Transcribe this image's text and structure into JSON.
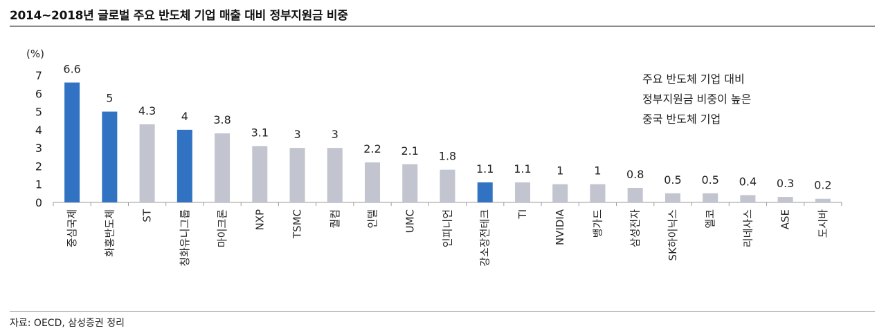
{
  "title": "2014~2018년 글로벌 주요 반도체 기업 매출 대비 정부지원금 비중",
  "source": "자료: OECD, 삼성증권 정리",
  "annotation": [
    "주요 반도체 기업 대비",
    "정부지원금 비중이 높은",
    "중국 반도체 기업"
  ],
  "colors": {
    "highlight": "#3173c2",
    "default": "#c2c4cf"
  },
  "chart_data": {
    "type": "bar",
    "ylabel": "(%)",
    "ylim": [
      0,
      7
    ],
    "yticks": [
      0,
      1,
      2,
      3,
      4,
      5,
      6,
      7
    ],
    "categories": [
      "중심국제",
      "화홍반도체",
      "ST",
      "칭화유니그룹",
      "마이크론",
      "NXP",
      "TSMC",
      "퀄컴",
      "인텔",
      "UMC",
      "인피니언",
      "강소장전테크",
      "TI",
      "NVIDIA",
      "뱅가드",
      "삼성전자",
      "SK하이닉스",
      "엘코",
      "리네사스",
      "ASE",
      "도시바"
    ],
    "values": [
      6.6,
      5,
      4.3,
      4,
      3.8,
      3.1,
      3,
      3,
      2.2,
      2.1,
      1.8,
      1.1,
      1.1,
      1,
      1,
      0.8,
      0.5,
      0.5,
      0.4,
      0.3,
      0.2
    ],
    "value_labels": [
      "6.6",
      "5",
      "4.3",
      "4",
      "3.8",
      "3.1",
      "3",
      "3",
      "2.2",
      "2.1",
      "1.8",
      "1.1",
      "1.1",
      "1",
      "1",
      "0.8",
      "0.5",
      "0.5",
      "0.4",
      "0.3",
      "0.2"
    ],
    "highlighted": [
      "중심국제",
      "화홍반도체",
      "칭화유니그룹",
      "강소장전테크"
    ],
    "grid": false,
    "legend": "none"
  }
}
